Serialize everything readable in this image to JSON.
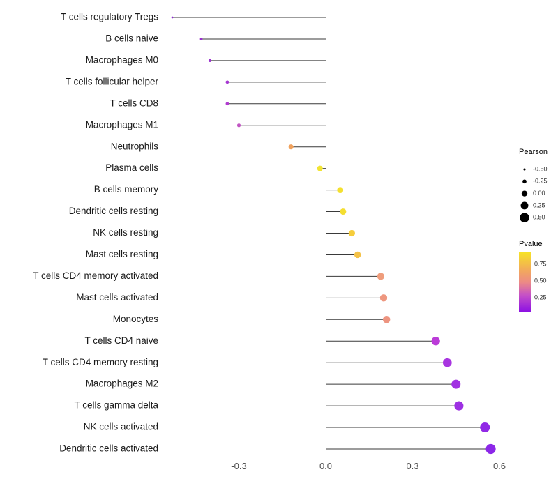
{
  "chart_data": {
    "type": "lollipop",
    "title": "",
    "xlabel": "",
    "ylabel": "",
    "xlim": [
      -0.58,
      0.66
    ],
    "x_ticks": [
      -0.3,
      0.0,
      0.3,
      0.6
    ],
    "x_tick_labels": [
      "-0.3",
      "0.0",
      "0.3",
      "0.6"
    ],
    "grid": false,
    "points": [
      {
        "label": "T cells regulatory Tregs",
        "pearson": -0.53,
        "pvalue": 0.1,
        "color": "#8e2bd0"
      },
      {
        "label": "B cells naive",
        "pearson": -0.43,
        "pvalue": 0.12,
        "color": "#9a30ce"
      },
      {
        "label": "Macrophages M0",
        "pearson": -0.4,
        "pvalue": 0.14,
        "color": "#9c32d0"
      },
      {
        "label": "T cells follicular helper",
        "pearson": -0.34,
        "pvalue": 0.2,
        "color": "#a637d2"
      },
      {
        "label": "T cells CD8",
        "pearson": -0.34,
        "pvalue": 0.21,
        "color": "#b13bd0"
      },
      {
        "label": "Macrophages M1",
        "pearson": -0.3,
        "pvalue": 0.27,
        "color": "#c155c3"
      },
      {
        "label": "Neutrophils",
        "pearson": -0.12,
        "pvalue": 0.65,
        "color": "#f0a15c"
      },
      {
        "label": "Plasma cells",
        "pearson": -0.02,
        "pvalue": 0.92,
        "color": "#f2e432"
      },
      {
        "label": "B cells memory",
        "pearson": 0.05,
        "pvalue": 0.85,
        "color": "#f4e02e"
      },
      {
        "label": "Dendritic cells resting",
        "pearson": 0.06,
        "pvalue": 0.84,
        "color": "#f4de30"
      },
      {
        "label": "NK cells resting",
        "pearson": 0.09,
        "pvalue": 0.75,
        "color": "#f6cd3c"
      },
      {
        "label": "Mast cells resting",
        "pearson": 0.11,
        "pvalue": 0.7,
        "color": "#f4c248"
      },
      {
        "label": "T cells CD4 memory activated",
        "pearson": 0.19,
        "pvalue": 0.5,
        "color": "#ef9d7c"
      },
      {
        "label": "Mast cells activated",
        "pearson": 0.2,
        "pvalue": 0.48,
        "color": "#ee977f"
      },
      {
        "label": "Monocytes",
        "pearson": 0.21,
        "pvalue": 0.46,
        "color": "#ed9480"
      },
      {
        "label": "T cells CD4 naive",
        "pearson": 0.38,
        "pvalue": 0.18,
        "color": "#bb3bd8"
      },
      {
        "label": "T cells CD4 memory resting",
        "pearson": 0.42,
        "pvalue": 0.14,
        "color": "#a835e0"
      },
      {
        "label": "Macrophages M2",
        "pearson": 0.45,
        "pvalue": 0.12,
        "color": "#a232e2"
      },
      {
        "label": "T cells gamma delta",
        "pearson": 0.46,
        "pvalue": 0.11,
        "color": "#9d30e3"
      },
      {
        "label": "NK cells activated",
        "pearson": 0.55,
        "pvalue": 0.06,
        "color": "#9129e6"
      },
      {
        "label": "Dendritic cells activated",
        "pearson": 0.57,
        "pvalue": 0.05,
        "color": "#8c27e8"
      }
    ],
    "legend_size": {
      "title": "Pearson",
      "ticks": [
        "-0.50",
        "-0.25",
        "0.00",
        "0.25",
        "0.50"
      ],
      "tick_values": [
        -0.5,
        -0.25,
        0.0,
        0.25,
        0.5
      ]
    },
    "legend_color": {
      "title": "Pvalue",
      "ticks": [
        "0.75",
        "0.50",
        "0.25"
      ],
      "tick_values": [
        0.75,
        0.5,
        0.25
      ],
      "domain": [
        0.93,
        0.03
      ],
      "gradient_stops": [
        {
          "pos": 0.0,
          "color": "#f6e226"
        },
        {
          "pos": 0.3,
          "color": "#f2a95c"
        },
        {
          "pos": 0.5,
          "color": "#ec8a86"
        },
        {
          "pos": 0.72,
          "color": "#c44fc8"
        },
        {
          "pos": 1.0,
          "color": "#8a0ee4"
        }
      ]
    }
  }
}
